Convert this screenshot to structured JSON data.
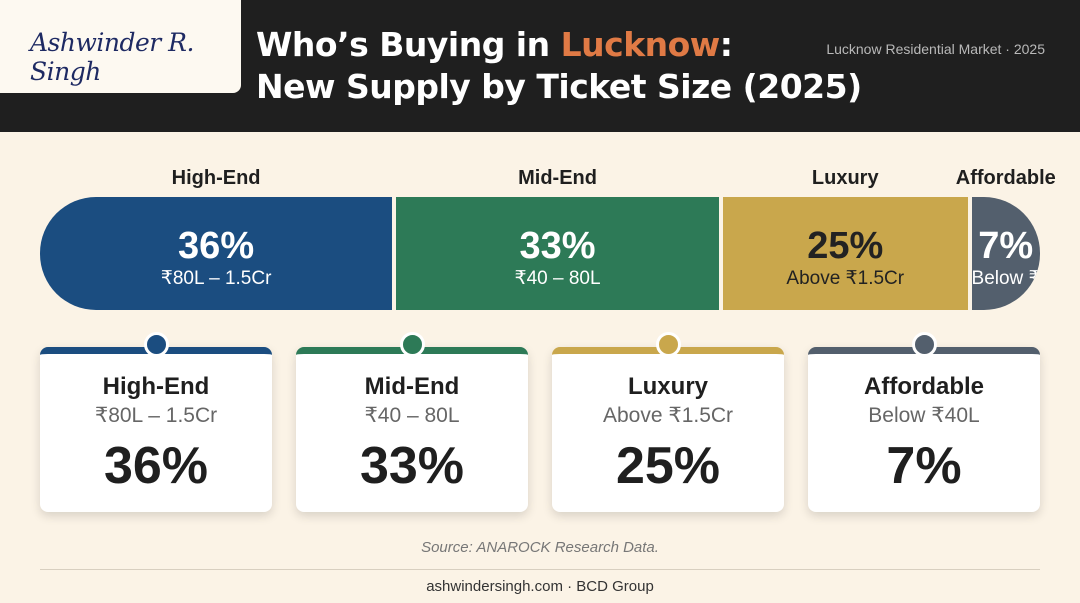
{
  "signature": "Ashwinder R. Singh",
  "title": {
    "line1_prefix": "Who’s Buying in ",
    "line1_highlight": "Lucknow",
    "line1_suffix": ":",
    "line2": "New Supply by Ticket Size (2025)"
  },
  "market_label": "Lucknow Residential Market · 2025",
  "colors": {
    "header_bg": "#1f1f1f",
    "highlight": "#e07a45",
    "page_bg": "#fbf3e6"
  },
  "chart_data": {
    "type": "bar",
    "orientation": "horizontal-stacked",
    "unit": "%",
    "categories": [
      "High-End",
      "Mid-End",
      "Luxury",
      "Affordable"
    ],
    "values": [
      36,
      33,
      25,
      7
    ],
    "ranges": [
      "₹80L – 1.5Cr",
      "₹40 – 80L",
      "Above ₹1.5Cr",
      "Below ₹40L"
    ],
    "percent_labels": [
      "36%",
      "33%",
      "25%",
      "7%"
    ],
    "colors": [
      "#1b4d80",
      "#2d7a57",
      "#c9a74c",
      "#535f6d"
    ],
    "text_colors": [
      "#ffffff",
      "#ffffff",
      "#222222",
      "#ffffff"
    ]
  },
  "source": "Source: ANAROCK Research Data.",
  "footer": "ashwindersingh.com · BCD Group"
}
